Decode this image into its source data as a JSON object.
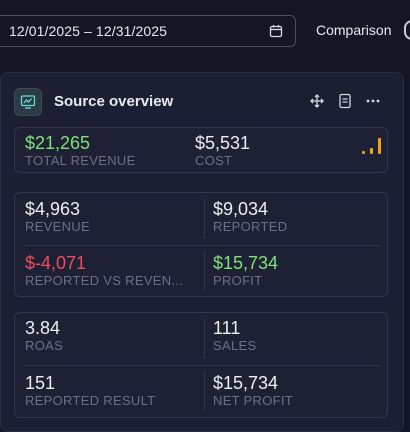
{
  "date_range": {
    "value": "12/01/2025 – 12/31/2025"
  },
  "comparison_label": "Comparison",
  "card": {
    "title": "Source overview",
    "summary": {
      "total_revenue": {
        "value": "$21,265",
        "label": "TOTAL REVENUE"
      },
      "cost": {
        "value": "$5,531",
        "label": "COST"
      }
    },
    "group1": {
      "revenue": {
        "value": "$4,963",
        "label": "REVENUE"
      },
      "reported": {
        "value": "$9,034",
        "label": "REPORTED"
      },
      "reported_vs_revenue": {
        "value": "$-4,071",
        "label": "REPORTED VS REVEN..."
      },
      "profit": {
        "value": "$15,734",
        "label": "PROFIT"
      }
    },
    "group2": {
      "roas": {
        "value": "3.84",
        "label": "ROAS"
      },
      "sales": {
        "value": "111",
        "label": "SALES"
      },
      "reported_result": {
        "value": "151",
        "label": "REPORTED RESULT"
      },
      "net_profit": {
        "value": "$15,734",
        "label": "NET PROFIT"
      }
    }
  },
  "colors": {
    "positive": "#7ee07a",
    "negative": "#ef4d5e",
    "accent_orange": "#f0a21a",
    "background": "#141625",
    "card": "#1c1f31"
  },
  "icons": [
    "calendar-icon",
    "chart-monitor-icon",
    "move-icon",
    "document-icon",
    "more-icon",
    "trend-bars-icon"
  ]
}
